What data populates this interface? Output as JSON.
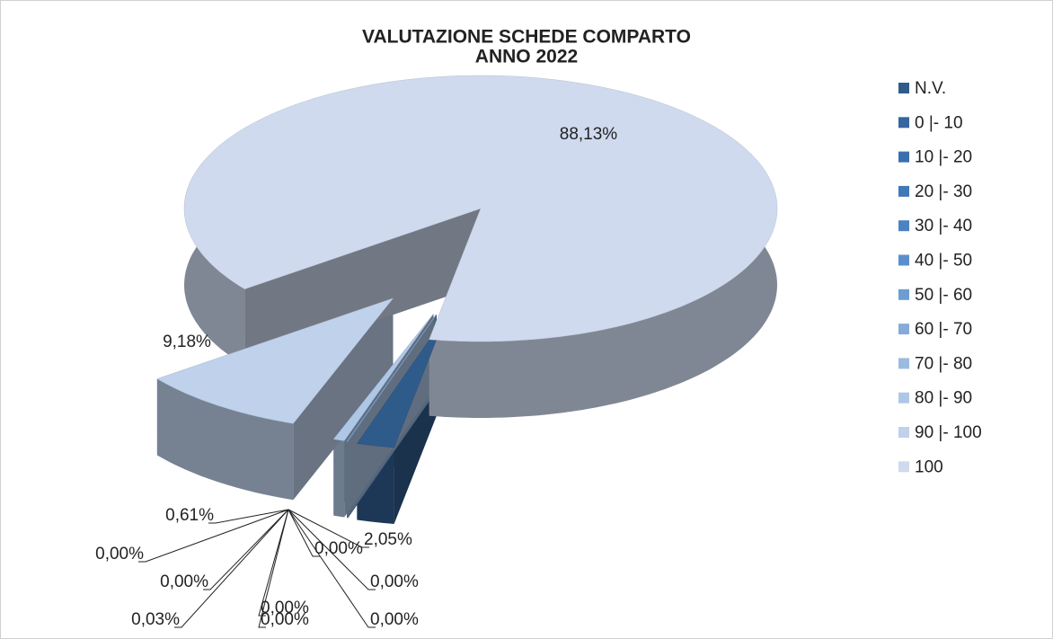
{
  "chart_data": {
    "type": "pie",
    "title_lines": [
      "VALUTAZIONE SCHEDE COMPARTO",
      "ANNO 2022"
    ],
    "categories": [
      "N.V.",
      "0 |- 10",
      "10 |- 20",
      "20 |- 30",
      "30 |- 40",
      "40 |- 50",
      "50 |- 60",
      "60 |- 70",
      "70 |- 80",
      "80 |- 90",
      "90 |- 100",
      "100"
    ],
    "values": [
      2.05,
      0,
      0,
      0,
      0,
      0,
      0.03,
      0,
      0,
      0.61,
      9.18,
      88.13
    ],
    "value_labels": [
      "2,05%",
      "0,00%",
      "0,00%",
      "0,00%",
      "0,00%",
      "0,00%",
      "0,03%",
      "0,00%",
      "0,00%",
      "0,61%",
      "9,18%",
      "88,13%"
    ],
    "colors": [
      "#2f5b8a",
      "#3566a0",
      "#3a6fae",
      "#4178b8",
      "#4a82c2",
      "#5b8fcc",
      "#6e9dd3",
      "#85acd9",
      "#9bbbe0",
      "#afc7e6",
      "#bfd1eb",
      "#cfdaee"
    ],
    "legend": "right"
  }
}
